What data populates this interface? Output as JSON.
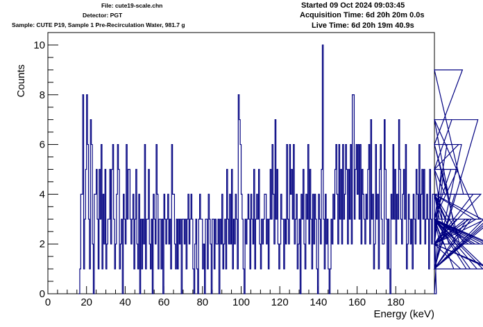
{
  "header": {
    "file": "File: cute19-scale.chn",
    "detector": "Detector: PGT",
    "sample": "Sample: CUTE P19, Sample 1 Pre-Recirculation Water, 981.7 g",
    "started": "Started 09 Oct 2024 09:03:45",
    "acquisition": "Acquisition Time: 6d 20h 20m 0.0s",
    "live": "Live Time: 6d 20h 19m 40.9s"
  },
  "colors": {
    "histogram": "#000080",
    "axis": "#000000",
    "background": "#ffffff"
  },
  "chart_data": {
    "type": "histogram",
    "xlabel": "Energy (keV)",
    "ylabel": "Counts",
    "xlim": [
      0,
      200
    ],
    "ylim": [
      0,
      10.5
    ],
    "x_ticks": [
      0,
      20,
      40,
      60,
      80,
      100,
      120,
      140,
      160,
      180
    ],
    "y_ticks": [
      0,
      2,
      4,
      6,
      8,
      10
    ],
    "x_start": 16,
    "bin_width": 0.5,
    "counts": [
      0,
      1,
      4,
      4,
      8,
      1,
      3,
      5,
      8,
      6,
      3,
      1,
      7,
      6,
      2,
      0,
      4,
      4,
      5,
      3,
      1,
      5,
      3,
      6,
      1,
      4,
      2,
      5,
      1,
      2,
      3,
      3,
      5,
      2,
      5,
      6,
      3,
      1,
      2,
      4,
      6,
      5,
      1,
      2,
      3,
      0,
      4,
      3,
      2,
      6,
      3,
      5,
      5,
      3,
      2,
      3,
      4,
      1,
      3,
      5,
      2,
      1,
      4,
      0,
      3,
      1,
      3,
      2,
      6,
      1,
      3,
      3,
      5,
      2,
      1,
      3,
      0,
      4,
      3,
      2,
      6,
      4,
      1,
      3,
      3,
      1,
      3,
      0,
      4,
      3,
      2,
      3,
      4,
      2,
      3,
      1,
      6,
      4,
      4,
      2,
      1,
      3,
      1,
      3,
      2,
      3,
      0,
      3,
      3,
      2,
      3,
      1,
      3,
      4,
      2,
      3,
      4,
      3,
      1,
      0,
      2,
      3,
      1,
      0,
      3,
      4,
      3,
      3,
      1,
      2,
      0,
      3,
      3,
      1,
      4,
      3,
      2,
      0,
      3,
      3,
      1,
      3,
      2,
      2,
      3,
      0,
      3,
      2,
      4,
      1,
      2,
      3,
      1,
      5,
      3,
      2,
      4,
      2,
      5,
      1,
      3,
      2,
      4,
      3,
      1,
      8,
      7,
      6,
      4,
      3,
      1,
      0,
      3,
      2,
      3,
      4,
      3,
      1,
      4,
      3,
      2,
      5,
      1,
      3,
      4,
      3,
      5,
      2,
      1,
      3,
      2,
      3,
      4,
      4,
      2,
      3,
      1,
      3,
      5,
      3,
      6,
      4,
      2,
      7,
      3,
      5,
      2,
      1,
      2,
      4,
      3,
      3,
      1,
      3,
      2,
      6,
      3,
      2,
      6,
      4,
      5,
      3,
      6,
      2,
      3,
      4,
      1,
      2,
      3,
      0,
      4,
      3,
      5,
      2,
      1,
      4,
      3,
      6,
      2,
      5,
      3,
      1,
      4,
      2,
      4,
      3,
      1,
      0,
      4,
      3,
      2,
      5,
      10,
      3,
      1,
      4,
      2,
      3,
      1,
      0,
      1,
      3,
      2,
      4,
      3,
      5,
      6,
      4,
      2,
      6,
      3,
      5,
      2,
      6,
      3,
      4,
      6,
      5,
      2,
      5,
      3,
      6,
      2,
      8,
      8,
      3,
      5,
      6,
      4,
      6,
      3,
      6,
      2,
      5,
      4,
      3,
      2,
      4,
      3,
      5,
      6,
      2,
      7,
      3,
      4,
      1,
      2,
      6,
      3,
      4,
      1,
      5,
      6,
      3,
      2,
      2,
      7,
      5,
      3,
      1,
      3,
      1,
      0,
      4,
      3,
      6,
      3,
      5,
      2,
      4,
      3,
      7,
      5,
      3,
      2,
      4,
      5,
      3,
      6,
      1,
      2,
      4,
      3,
      2,
      3,
      1,
      4,
      3,
      2,
      5,
      4,
      3,
      6,
      2,
      4,
      5,
      3,
      5,
      2,
      3,
      4,
      3,
      1,
      5,
      3,
      2,
      4,
      4,
      1,
      3,
      0,
      2,
      4,
      3,
      2,
      5,
      3,
      2,
      5,
      4,
      3,
      6,
      4,
      2,
      3,
      5,
      7,
      3,
      1,
      4,
      2,
      3,
      5,
      6,
      2,
      1,
      6,
      9,
      4,
      2,
      3,
      1,
      3,
      2,
      3,
      1,
      3,
      2,
      4,
      3,
      2,
      3,
      1,
      7,
      3,
      2,
      4,
      3,
      1,
      3,
      2,
      3,
      1,
      3,
      2,
      1,
      3,
      2,
      1,
      3
    ]
  }
}
